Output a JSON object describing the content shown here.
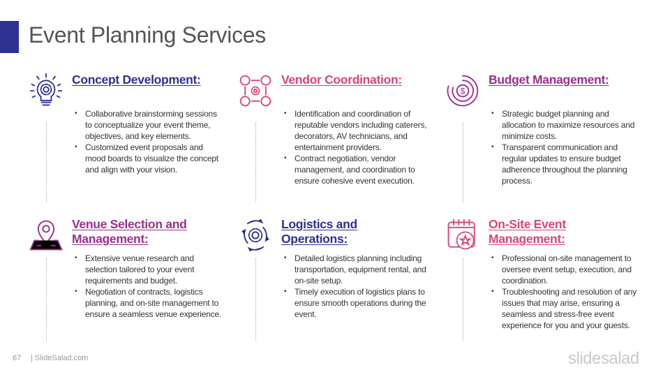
{
  "title": "Event Planning Services",
  "colors": {
    "navy": "#2e3192",
    "pink": "#d9457a",
    "purple": "#9b2f8f"
  },
  "cards": [
    {
      "icon": "lightbulb-gear-icon",
      "title": "Concept Development:",
      "color": "#2e3192",
      "bullets": [
        "Collaborative brainstorming sessions to conceptualize your event theme, objectives, and key elements.",
        "Customized event proposals and mood boards to visualize the concept and align with your vision."
      ]
    },
    {
      "icon": "vendor-network-icon",
      "title": "Vendor Coordination:",
      "color": "#d9457a",
      "bullets": [
        "Identification and coordination of reputable vendors including caterers, decorators, AV technicians, and entertainment providers.",
        "Contract negotiation, vendor management, and coordination to ensure cohesive event execution."
      ]
    },
    {
      "icon": "budget-dollar-icon",
      "title": "Budget Management:",
      "color": "#9b2f8f",
      "bullets": [
        "Strategic budget planning and allocation to maximize resources and minimize costs.",
        "Transparent communication and regular updates to ensure budget adherence throughout the planning process."
      ]
    },
    {
      "icon": "map-pin-icon",
      "title": "Venue Selection and Management:",
      "color": "#9b2f8f",
      "bullets": [
        "Extensive venue research and selection tailored to your event requirements and budget.",
        "Negotiation of contracts, logistics planning, and on-site management to ensure a seamless venue experience."
      ]
    },
    {
      "icon": "cycle-gear-icon",
      "title": "Logistics and Operations:",
      "color": "#2e3192",
      "bullets": [
        "Detailed logistics planning including transportation, equipment rental, and on-site setup.",
        "Timely execution of logistics plans to ensure smooth operations during the event."
      ]
    },
    {
      "icon": "calendar-star-icon",
      "title": "On-Site Event Management:",
      "color": "#d9457a",
      "bullets": [
        "Professional on-site management to oversee event setup, execution, and coordination.",
        "Troubleshooting and resolution of any issues that may arise, ensuring a seamless and stress-free event experience for you and your guests."
      ]
    }
  ],
  "footer": {
    "page": "67",
    "site": "| SlideSalad.com",
    "logo": "slidesalad"
  }
}
